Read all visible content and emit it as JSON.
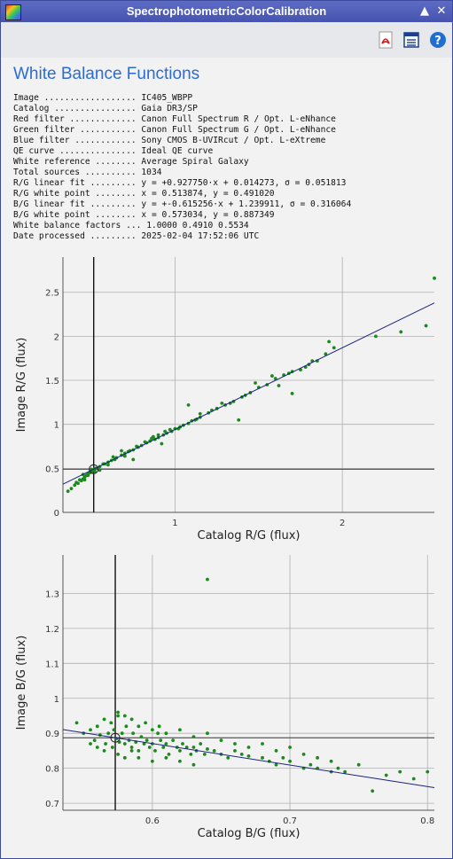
{
  "window": {
    "title": "SpectrophotometricColorCalibration",
    "controls": [
      "shade-icon",
      "close-icon"
    ]
  },
  "toolbar": {
    "icons": [
      "pdf-icon",
      "document-list-icon",
      "help-icon"
    ]
  },
  "heading": "White Balance Functions",
  "info_rows": [
    {
      "label": "Image ..................",
      "value": "IC405_WBPP"
    },
    {
      "label": "Catalog ................",
      "value": "Gaia DR3/SP"
    },
    {
      "label": "Red filter .............",
      "value": "Canon Full Spectrum R / Opt. L-eNhance"
    },
    {
      "label": "Green filter ...........",
      "value": "Canon Full Spectrum G / Opt. L-eNhance"
    },
    {
      "label": "Blue filter ............",
      "value": "Sony CMOS B-UVIRcut / Opt. L-eXtreme"
    },
    {
      "label": "QE curve ...............",
      "value": "Ideal QE curve"
    },
    {
      "label": "White reference ........",
      "value": "Average Spiral Galaxy"
    },
    {
      "label": "Total sources ..........",
      "value": "1034"
    },
    {
      "label": "R/G linear fit .........",
      "value": "y = +0.927750·x + 0.014273, σ = 0.051813"
    },
    {
      "label": "R/G white point ........",
      "value": "x = 0.513874, y = 0.491020"
    },
    {
      "label": "B/G linear fit .........",
      "value": "y = +-0.615256·x + 1.239911, σ = 0.316064"
    },
    {
      "label": "B/G white point ........",
      "value": "x = 0.573034, y = 0.887349"
    },
    {
      "label": "White balance factors ...",
      "value": "1.0000 0.4910 0.5534"
    },
    {
      "label": "Date processed .........",
      "value": "2025-02-04 17:52:06 UTC"
    }
  ],
  "chart_data": [
    {
      "type": "scatter",
      "xlabel": "Catalog R/G (flux)",
      "ylabel": "Image R/G (flux)",
      "xlim": [
        0.33,
        2.55
      ],
      "ylim": [
        0,
        2.9
      ],
      "xticks": [
        1,
        2
      ],
      "yticks": [
        0,
        0.5,
        1,
        1.5,
        2,
        2.5
      ],
      "grid": true,
      "fit": {
        "slope": 0.92775,
        "intercept": 0.014273
      },
      "white_point": {
        "x": 0.513874,
        "y": 0.49102
      },
      "series": [
        {
          "points": [
            [
              0.38,
              0.27
            ],
            [
              0.4,
              0.31
            ],
            [
              0.42,
              0.33
            ],
            [
              0.44,
              0.36
            ],
            [
              0.45,
              0.38
            ],
            [
              0.46,
              0.4
            ],
            [
              0.47,
              0.42
            ],
            [
              0.48,
              0.44
            ],
            [
              0.49,
              0.45
            ],
            [
              0.5,
              0.46
            ],
            [
              0.51,
              0.48
            ],
            [
              0.52,
              0.5
            ],
            [
              0.53,
              0.5
            ],
            [
              0.55,
              0.52
            ],
            [
              0.57,
              0.55
            ],
            [
              0.6,
              0.57
            ],
            [
              0.62,
              0.59
            ],
            [
              0.65,
              0.62
            ],
            [
              0.68,
              0.65
            ],
            [
              0.7,
              0.67
            ],
            [
              0.72,
              0.69
            ],
            [
              0.75,
              0.71
            ],
            [
              0.78,
              0.74
            ],
            [
              0.8,
              0.76
            ],
            [
              0.83,
              0.79
            ],
            [
              0.85,
              0.81
            ],
            [
              0.88,
              0.83
            ],
            [
              0.9,
              0.85
            ],
            [
              0.93,
              0.88
            ],
            [
              0.95,
              0.9
            ],
            [
              0.98,
              0.92
            ],
            [
              1.0,
              0.95
            ],
            [
              1.03,
              0.97
            ],
            [
              1.05,
              0.99
            ],
            [
              1.08,
              1.01
            ],
            [
              1.1,
              1.04
            ],
            [
              1.13,
              1.06
            ],
            [
              1.15,
              1.08
            ],
            [
              1.2,
              1.13
            ],
            [
              1.25,
              1.18
            ],
            [
              1.3,
              1.22
            ],
            [
              1.35,
              1.26
            ],
            [
              1.4,
              1.31
            ],
            [
              1.45,
              1.36
            ],
            [
              1.5,
              1.42
            ],
            [
              1.55,
              1.45
            ],
            [
              1.6,
              1.52
            ],
            [
              1.65,
              1.56
            ],
            [
              1.7,
              1.6
            ],
            [
              1.75,
              1.62
            ],
            [
              1.8,
              1.68
            ],
            [
              1.85,
              1.72
            ],
            [
              1.9,
              1.8
            ],
            [
              1.95,
              1.87
            ],
            [
              2.2,
              2.0
            ],
            [
              2.35,
              2.05
            ],
            [
              2.5,
              2.12
            ],
            [
              2.55,
              2.66
            ],
            [
              1.92,
              1.94
            ],
            [
              1.7,
              1.35
            ],
            [
              1.38,
              1.05
            ],
            [
              1.08,
              1.22
            ],
            [
              0.75,
              0.6
            ],
            [
              0.68,
              0.7
            ],
            [
              0.92,
              0.78
            ],
            [
              1.15,
              1.12
            ],
            [
              0.6,
              0.54
            ],
            [
              0.52,
              0.47
            ],
            [
              0.48,
              0.42
            ],
            [
              0.58,
              0.55
            ],
            [
              0.64,
              0.6
            ],
            [
              0.73,
              0.7
            ],
            [
              0.86,
              0.84
            ],
            [
              0.97,
              0.94
            ],
            [
              1.02,
              0.95
            ],
            [
              0.55,
              0.48
            ],
            [
              0.5,
              0.49
            ],
            [
              0.45,
              0.43
            ],
            [
              0.43,
              0.37
            ],
            [
              0.41,
              0.34
            ],
            [
              0.63,
              0.63
            ],
            [
              0.7,
              0.64
            ],
            [
              0.77,
              0.75
            ],
            [
              0.82,
              0.8
            ],
            [
              0.87,
              0.86
            ],
            [
              0.9,
              0.88
            ],
            [
              0.94,
              0.92
            ],
            [
              1.12,
              1.05
            ],
            [
              1.22,
              1.16
            ],
            [
              1.28,
              1.24
            ],
            [
              1.33,
              1.24
            ],
            [
              1.42,
              1.33
            ],
            [
              1.48,
              1.47
            ],
            [
              1.58,
              1.55
            ],
            [
              1.62,
              1.44
            ],
            [
              1.78,
              1.65
            ],
            [
              1.82,
              1.72
            ],
            [
              1.68,
              1.58
            ],
            [
              0.36,
              0.24
            ],
            [
              0.46,
              0.37
            ]
          ]
        }
      ]
    },
    {
      "type": "scatter",
      "xlabel": "Catalog B/G (flux)",
      "ylabel": "Image B/G (flux)",
      "xlim": [
        0.535,
        0.805
      ],
      "ylim": [
        0.68,
        1.41
      ],
      "xticks": [
        0.6,
        0.7,
        0.8
      ],
      "yticks": [
        0.7,
        0.8,
        0.9,
        1,
        1.1,
        1.2,
        1.3
      ],
      "grid": true,
      "fit": {
        "slope": -0.615256,
        "intercept": 1.239911
      },
      "white_point": {
        "x": 0.573034,
        "y": 0.887349
      },
      "series": [
        {
          "points": [
            [
              0.545,
              0.93
            ],
            [
              0.55,
              0.9
            ],
            [
              0.555,
              0.91
            ],
            [
              0.558,
              0.88
            ],
            [
              0.56,
              0.92
            ],
            [
              0.562,
              0.895
            ],
            [
              0.565,
              0.94
            ],
            [
              0.566,
              0.87
            ],
            [
              0.568,
              0.9
            ],
            [
              0.57,
              0.93
            ],
            [
              0.571,
              0.86
            ],
            [
              0.572,
              0.91
            ],
            [
              0.574,
              0.885
            ],
            [
              0.575,
              0.95
            ],
            [
              0.576,
              0.875
            ],
            [
              0.578,
              0.9
            ],
            [
              0.58,
              0.87
            ],
            [
              0.581,
              0.92
            ],
            [
              0.583,
              0.88
            ],
            [
              0.585,
              0.86
            ],
            [
              0.586,
              0.9
            ],
            [
              0.588,
              0.875
            ],
            [
              0.59,
              0.85
            ],
            [
              0.592,
              0.89
            ],
            [
              0.594,
              0.87
            ],
            [
              0.596,
              0.88
            ],
            [
              0.598,
              0.86
            ],
            [
              0.6,
              0.87
            ],
            [
              0.602,
              0.85
            ],
            [
              0.604,
              0.9
            ],
            [
              0.606,
              0.88
            ],
            [
              0.608,
              0.86
            ],
            [
              0.61,
              0.87
            ],
            [
              0.612,
              0.84
            ],
            [
              0.615,
              0.88
            ],
            [
              0.618,
              0.86
            ],
            [
              0.62,
              0.85
            ],
            [
              0.622,
              0.87
            ],
            [
              0.625,
              0.86
            ],
            [
              0.628,
              0.84
            ],
            [
              0.63,
              0.86
            ],
            [
              0.632,
              0.85
            ],
            [
              0.635,
              0.87
            ],
            [
              0.638,
              0.84
            ],
            [
              0.64,
              0.855
            ],
            [
              0.645,
              0.85
            ],
            [
              0.65,
              0.84
            ],
            [
              0.655,
              0.83
            ],
            [
              0.66,
              0.85
            ],
            [
              0.665,
              0.84
            ],
            [
              0.67,
              0.835
            ],
            [
              0.68,
              0.83
            ],
            [
              0.685,
              0.82
            ],
            [
              0.69,
              0.81
            ],
            [
              0.695,
              0.83
            ],
            [
              0.7,
              0.82
            ],
            [
              0.71,
              0.8
            ],
            [
              0.715,
              0.81
            ],
            [
              0.72,
              0.8
            ],
            [
              0.73,
              0.79
            ],
            [
              0.735,
              0.8
            ],
            [
              0.74,
              0.79
            ],
            [
              0.75,
              0.81
            ],
            [
              0.76,
              0.735
            ],
            [
              0.77,
              0.78
            ],
            [
              0.78,
              0.79
            ],
            [
              0.79,
              0.77
            ],
            [
              0.8,
              0.79
            ],
            [
              0.64,
              1.34
            ],
            [
              0.575,
              0.96
            ],
            [
              0.58,
              0.95
            ],
            [
              0.585,
              0.94
            ],
            [
              0.59,
              0.92
            ],
            [
              0.595,
              0.93
            ],
            [
              0.6,
              0.91
            ],
            [
              0.605,
              0.92
            ],
            [
              0.61,
              0.9
            ],
            [
              0.62,
              0.91
            ],
            [
              0.63,
              0.89
            ],
            [
              0.64,
              0.9
            ],
            [
              0.65,
              0.88
            ],
            [
              0.66,
              0.87
            ],
            [
              0.67,
              0.86
            ],
            [
              0.68,
              0.87
            ],
            [
              0.69,
              0.85
            ],
            [
              0.7,
              0.86
            ],
            [
              0.71,
              0.84
            ],
            [
              0.72,
              0.83
            ],
            [
              0.73,
              0.82
            ],
            [
              0.575,
              0.84
            ],
            [
              0.58,
              0.83
            ],
            [
              0.585,
              0.85
            ],
            [
              0.59,
              0.83
            ],
            [
              0.6,
              0.82
            ],
            [
              0.61,
              0.83
            ],
            [
              0.62,
              0.82
            ],
            [
              0.63,
              0.81
            ],
            [
              0.565,
              0.85
            ],
            [
              0.56,
              0.86
            ],
            [
              0.555,
              0.87
            ]
          ]
        }
      ]
    }
  ],
  "colors": {
    "title_bar": "#4a58b5",
    "heading": "#2a6bd5",
    "points": "#1a8a1a",
    "fit_line": "#1a237e",
    "grid": "#b0b0b0",
    "plot_bg": "#f2f2f3"
  }
}
